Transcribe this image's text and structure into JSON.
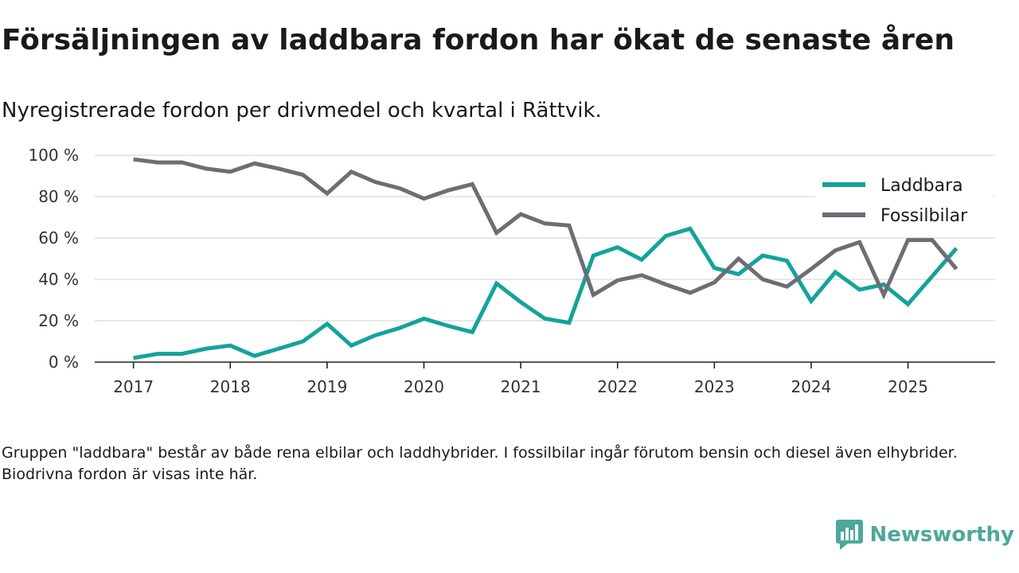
{
  "header": {
    "title": "Försäljningen av laddbara fordon har ökat de senaste åren",
    "subtitle": "Nyregistrerade fordon per drivmedel och kvartal i Rättvik."
  },
  "footnote": "Gruppen \"laddbara\" består av både rena elbilar och laddhybrider. I fossilbilar ingår förutom bensin och diesel även elhybrider. Biodrivna fordon är visas inte här.",
  "brand": {
    "name": "Newsworthy",
    "icon": "newsworthy-logo-icon",
    "color": "#4ea79a"
  },
  "chart_data": {
    "type": "line",
    "title": "Försäljningen av laddbara fordon har ökat de senaste åren",
    "subtitle": "Nyregistrerade fordon per drivmedel och kvartal i Rättvik.",
    "xlabel": "",
    "ylabel": "",
    "ylim": [
      0,
      100
    ],
    "y_ticks": [
      0,
      20,
      40,
      60,
      80,
      100
    ],
    "y_tick_labels": [
      "0 %",
      "20 %",
      "40 %",
      "60 %",
      "80 %",
      "100 %"
    ],
    "x_ticks": [
      2017,
      2018,
      2019,
      2020,
      2021,
      2022,
      2023,
      2024,
      2025
    ],
    "x_tick_labels": [
      "2017",
      "2018",
      "2019",
      "2020",
      "2021",
      "2022",
      "2023",
      "2024",
      "2025"
    ],
    "grid": "horizontal",
    "legend_position": "top-right",
    "x": [
      2017.0,
      2017.25,
      2017.5,
      2017.75,
      2018.0,
      2018.25,
      2018.5,
      2018.75,
      2019.0,
      2019.25,
      2019.5,
      2019.75,
      2020.0,
      2020.25,
      2020.5,
      2020.75,
      2021.0,
      2021.25,
      2021.5,
      2021.75,
      2022.0,
      2022.25,
      2022.5,
      2022.75,
      2023.0,
      2023.25,
      2023.5,
      2023.75,
      2024.0,
      2024.25,
      2024.5,
      2024.75,
      2025.0,
      2025.25,
      2025.5
    ],
    "series": [
      {
        "name": "Laddbara",
        "color": "#14a39a",
        "values": [
          2,
          4,
          4,
          6.5,
          8,
          3,
          6.5,
          10,
          18.5,
          8,
          13,
          16.5,
          21,
          17.5,
          14.5,
          38,
          29,
          21,
          19,
          51.5,
          55.5,
          49.5,
          61,
          64.5,
          45.5,
          42.5,
          51.5,
          49,
          29.5,
          43.5,
          35,
          37.5,
          28,
          41.5,
          55
        ]
      },
      {
        "name": "Fossilbilar",
        "color": "#6e6d75",
        "values": [
          98,
          96.5,
          96.5,
          93.5,
          92,
          96,
          93.5,
          90.5,
          81.5,
          92,
          87,
          84,
          79,
          83,
          86,
          62.5,
          71.5,
          67,
          66,
          32.5,
          39.5,
          42,
          37.5,
          33.5,
          38.5,
          50,
          40,
          36.5,
          45,
          54,
          58,
          32.5,
          59,
          59,
          45
        ]
      }
    ]
  }
}
